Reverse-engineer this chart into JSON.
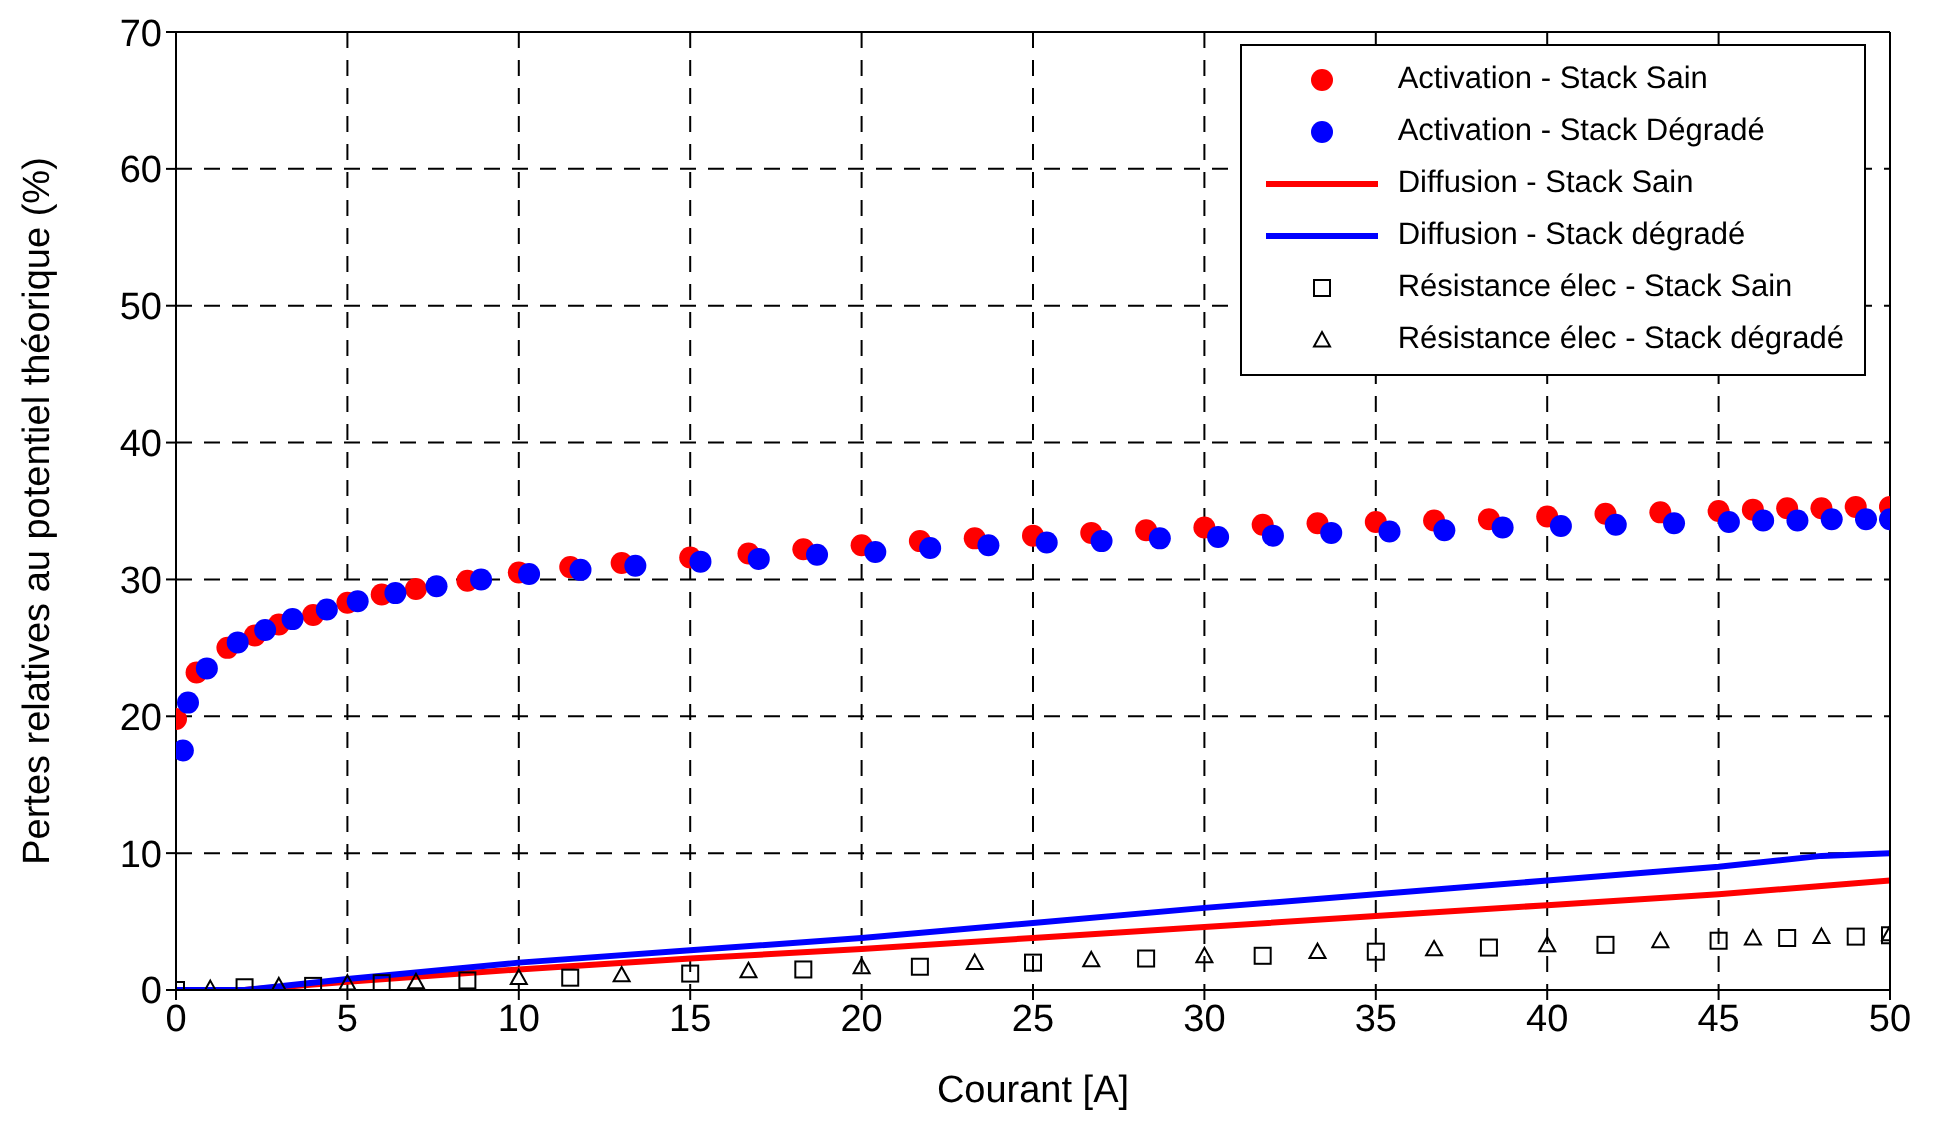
{
  "chart_data": {
    "type": "scatter",
    "xlabel": "Courant [A]",
    "ylabel": "Pertes relatives au potentiel théorique (%)",
    "xlim": [
      0,
      50
    ],
    "xticks": [
      0,
      5,
      10,
      15,
      20,
      25,
      30,
      35,
      40,
      45,
      50
    ],
    "ylim": [
      0,
      70
    ],
    "yticks": [
      0,
      10,
      20,
      30,
      40,
      50,
      60,
      70
    ],
    "grid": true,
    "legend": "top right",
    "series": [
      {
        "name": "Activation - Stack Sain",
        "marker": "circle",
        "color": "#ff0000",
        "x": [
          0,
          0.6,
          1.5,
          2.3,
          3,
          4,
          5,
          6,
          7,
          8.5,
          10,
          11.5,
          13,
          15,
          16.7,
          18.3,
          20,
          21.7,
          23.3,
          25,
          26.7,
          28.3,
          30,
          31.7,
          33.3,
          35,
          36.7,
          38.3,
          40,
          41.7,
          43.3,
          45,
          46,
          47,
          48,
          49,
          50
        ],
        "values": [
          19.8,
          23.2,
          25,
          25.9,
          26.7,
          27.4,
          28.3,
          28.9,
          29.3,
          29.9,
          30.5,
          30.9,
          31.2,
          31.6,
          31.9,
          32.2,
          32.5,
          32.8,
          33,
          33.2,
          33.4,
          33.6,
          33.8,
          34,
          34.1,
          34.2,
          34.3,
          34.4,
          34.6,
          34.8,
          34.9,
          35,
          35.1,
          35.2,
          35.2,
          35.3,
          35.3
        ]
      },
      {
        "name": "Activation - Stack Dégradé",
        "marker": "circle",
        "color": "#0000ff",
        "x": [
          0.2,
          0.35,
          0.9,
          1.8,
          2.6,
          3.4,
          4.4,
          5.3,
          6.4,
          7.6,
          8.9,
          10.3,
          11.8,
          13.4,
          15.3,
          17,
          18.7,
          20.4,
          22,
          23.7,
          25.4,
          27,
          28.7,
          30.4,
          32,
          33.7,
          35.4,
          37,
          38.7,
          40.4,
          42,
          43.7,
          45.3,
          46.3,
          47.3,
          48.3,
          49.3,
          50
        ],
        "values": [
          17.5,
          21,
          23.5,
          25.4,
          26.3,
          27.1,
          27.8,
          28.4,
          29,
          29.5,
          30,
          30.4,
          30.7,
          31,
          31.3,
          31.5,
          31.8,
          32,
          32.3,
          32.5,
          32.7,
          32.8,
          33,
          33.1,
          33.2,
          33.4,
          33.5,
          33.6,
          33.8,
          33.9,
          34,
          34.1,
          34.2,
          34.3,
          34.3,
          34.4,
          34.4,
          34.4
        ]
      },
      {
        "name": "Diffusion - Stack Sain",
        "type": "line",
        "marker": "none",
        "color": "#ff0000",
        "x": [
          0,
          2,
          5,
          10,
          15,
          20,
          25,
          30,
          35,
          40,
          45,
          48,
          50
        ],
        "values": [
          0,
          0,
          0.6,
          1.5,
          2.3,
          3,
          3.8,
          4.6,
          5.4,
          6.2,
          7,
          7.6,
          8
        ]
      },
      {
        "name": "Diffusion - Stack dégradé",
        "type": "line",
        "marker": "none",
        "color": "#0000ff",
        "x": [
          0,
          2,
          5,
          10,
          15,
          20,
          25,
          30,
          35,
          40,
          45,
          48,
          50
        ],
        "values": [
          0,
          0,
          0.8,
          2,
          2.9,
          3.8,
          4.9,
          6,
          7,
          8,
          9,
          9.8,
          10
        ]
      },
      {
        "name": "Résistance élec - Stack Sain",
        "marker": "square",
        "color": "#000000",
        "x": [
          0,
          2,
          4,
          6,
          8.5,
          11.5,
          15,
          18.3,
          21.7,
          25,
          28.3,
          31.7,
          35,
          38.3,
          41.7,
          45,
          47,
          49,
          50
        ],
        "values": [
          0,
          0.2,
          0.3,
          0.5,
          0.7,
          0.9,
          1.2,
          1.5,
          1.7,
          2,
          2.3,
          2.5,
          2.8,
          3.1,
          3.3,
          3.6,
          3.8,
          3.9,
          4
        ]
      },
      {
        "name": "Résistance élec - Stack dégradé",
        "marker": "triangle",
        "color": "#000000",
        "x": [
          1,
          3,
          5,
          7,
          10,
          13,
          16.7,
          20,
          23.3,
          26.7,
          30,
          33.3,
          36.7,
          40,
          43.3,
          46,
          48,
          50
        ],
        "values": [
          0.1,
          0.3,
          0.5,
          0.6,
          0.9,
          1.1,
          1.4,
          1.7,
          2,
          2.2,
          2.5,
          2.8,
          3,
          3.3,
          3.6,
          3.8,
          3.9,
          4.1
        ]
      }
    ]
  }
}
